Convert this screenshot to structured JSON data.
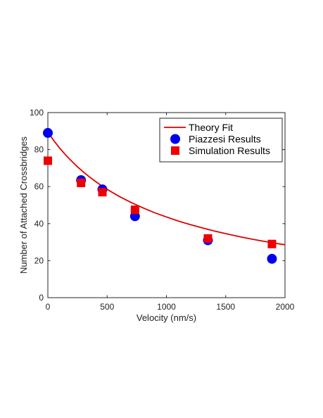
{
  "chart_data": {
    "type": "scatter",
    "title": "",
    "xlabel": "Velocity (nm/s)",
    "ylabel": "Number of Attached Crossbridges",
    "xlim": [
      0,
      2000
    ],
    "ylim": [
      0,
      100
    ],
    "xticks": [
      "0",
      "500",
      "1000",
      "1500",
      "2000"
    ],
    "yticks": [
      "0",
      "20",
      "40",
      "60",
      "80",
      "100"
    ],
    "grid": false,
    "legend_position": "top-right",
    "series": [
      {
        "name": "Theory Fit",
        "kind": "line",
        "color": "#e00000",
        "x": [
          0,
          50,
          100,
          150,
          200,
          250,
          300,
          350,
          400,
          450,
          500,
          600,
          700,
          800,
          900,
          1000,
          1100,
          1200,
          1300,
          1400,
          1500,
          1600,
          1700,
          1800,
          1900,
          2000
        ],
        "y": [
          89.5,
          84.9,
          80.8,
          77.1,
          73.8,
          70.7,
          67.9,
          65.3,
          62.9,
          60.6,
          58.5,
          54.8,
          51.5,
          48.6,
          45.9,
          43.6,
          41.4,
          39.5,
          37.7,
          36.1,
          34.6,
          33.2,
          31.9,
          30.7,
          29.6,
          28.6
        ]
      },
      {
        "name": "Piazzesi Results",
        "kind": "marker",
        "marker": "circle",
        "color": "#0000ee",
        "x": [
          0,
          280,
          460,
          735,
          1350,
          1890
        ],
        "y": [
          89,
          63.5,
          58.5,
          44,
          31,
          21
        ]
      },
      {
        "name": "Simulation Results",
        "kind": "marker",
        "marker": "square",
        "color": "#ee0000",
        "x": [
          0,
          280,
          460,
          735,
          1350,
          1890
        ],
        "y": [
          74,
          62,
          57,
          47.5,
          32,
          29
        ]
      }
    ]
  }
}
